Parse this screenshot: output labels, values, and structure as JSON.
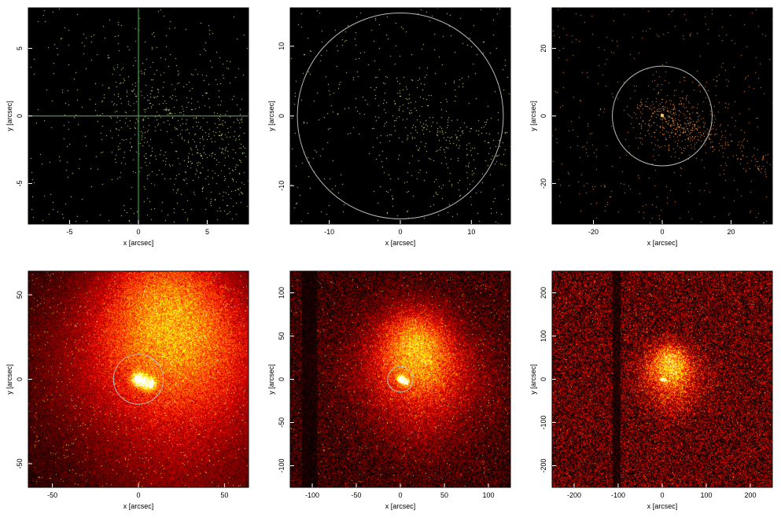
{
  "figure": {
    "background": "#ffffff",
    "axis_color": "#000000",
    "overlay_circle_color": "#b8b8b8",
    "crosshair_color": "#3aa23a"
  },
  "chart_data": [
    {
      "type": "heatmap",
      "panel": "top-left",
      "xlabel": "x [arcsec]",
      "ylabel": "y [arcsec]",
      "xlim": [
        -8,
        8
      ],
      "ylim": [
        -8,
        8
      ],
      "xticks": [
        -5,
        0,
        5
      ],
      "yticks": [
        -5,
        0,
        5
      ],
      "colormap": "sparse-yellow-green-on-black",
      "overlay": "crosshair",
      "crosshair_at": [
        0,
        0
      ],
      "counts_level": 0.0
    },
    {
      "type": "heatmap",
      "panel": "top-middle",
      "xlabel": "x [arcsec]",
      "ylabel": "y [arcsec]",
      "xlim": [
        -15.5,
        15.5
      ],
      "ylim": [
        -15.5,
        15.5
      ],
      "xticks": [
        -10,
        0,
        10
      ],
      "yticks": [
        -10,
        0,
        10
      ],
      "colormap": "sparse-yellow-on-black",
      "overlay": "circle",
      "circle_radius": 14.5,
      "counts_level": 0.0
    },
    {
      "type": "heatmap",
      "panel": "top-right",
      "xlabel": "x [arcsec]",
      "ylabel": "y [arcsec]",
      "xlim": [
        -32,
        32
      ],
      "ylim": [
        -32,
        32
      ],
      "xticks": [
        -20,
        0,
        20
      ],
      "yticks": [
        -20,
        0,
        20
      ],
      "colormap": "sparse-orange-on-black",
      "overlay": "circle",
      "circle_radius": 14.5,
      "counts_level": 0.05
    },
    {
      "type": "heatmap",
      "panel": "bottom-left",
      "xlabel": "x [arcsec]",
      "ylabel": "y [arcsec]",
      "xlim": [
        -64,
        64
      ],
      "ylim": [
        -64,
        64
      ],
      "xticks": [
        -50,
        0,
        50
      ],
      "yticks": [
        -50,
        0,
        50
      ],
      "colormap": "hot",
      "overlay": "circle",
      "circle_radius": 14.5,
      "counts_level": 0.3
    },
    {
      "type": "heatmap",
      "panel": "bottom-middle",
      "xlabel": "x [arcsec]",
      "ylabel": "y [arcsec]",
      "xlim": [
        -125,
        125
      ],
      "ylim": [
        -125,
        125
      ],
      "xticks": [
        -100,
        -50,
        0,
        50,
        100
      ],
      "yticks": [
        -100,
        -50,
        0,
        50,
        100
      ],
      "colormap": "hot",
      "overlay": "circle",
      "circle_radius": 14.5,
      "counts_level": 0.5
    },
    {
      "type": "heatmap",
      "panel": "bottom-right",
      "xlabel": "x [arcsec]",
      "ylabel": "y [arcsec]",
      "xlim": [
        -250,
        250
      ],
      "ylim": [
        -250,
        250
      ],
      "xticks": [
        -200,
        -100,
        0,
        100,
        200
      ],
      "yticks": [
        -200,
        -100,
        0,
        100,
        200
      ],
      "colormap": "hot",
      "overlay": "none",
      "counts_level": 0.8
    }
  ]
}
